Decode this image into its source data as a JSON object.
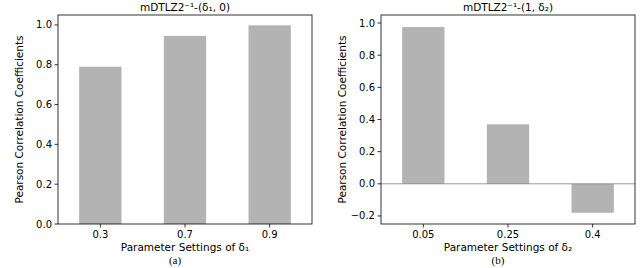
{
  "chart_data": [
    {
      "type": "bar",
      "title": "mDTLZ2⁻¹-(δ₁, 0)",
      "x_label": "Parameter Settings of δ₁",
      "y_label": "Pearson Correlation Coefficients",
      "caption": "(a)",
      "categories": [
        "0.3",
        "0.7",
        "0.9"
      ],
      "values": [
        0.79,
        0.945,
        0.998
      ],
      "color": "#b3b3b3",
      "ylim": [
        0,
        1.05
      ],
      "yticks": [
        {
          "value": 0,
          "label": "0.0"
        },
        {
          "value": 0.2,
          "label": "0.2"
        },
        {
          "value": 0.4,
          "label": "0.4"
        },
        {
          "value": 0.6,
          "label": "0.6"
        },
        {
          "value": 0.8,
          "label": "0.8"
        },
        {
          "value": 1,
          "label": "1.0"
        }
      ],
      "grid": false
    },
    {
      "type": "bar",
      "title": "mDTLZ2⁻¹-(1, δ₂)",
      "x_label": "Parameter Settings of δ₂",
      "y_label": "Pearson Correlation Coefficients",
      "caption": "(b)",
      "categories": [
        "0.05",
        "0.25",
        "0.4"
      ],
      "values": [
        0.975,
        0.37,
        -0.18
      ],
      "color": "#b3b3b3",
      "ylim": [
        -0.25,
        1.05
      ],
      "yticks": [
        {
          "value": -0.2,
          "label": "−0.2"
        },
        {
          "value": 0,
          "label": "0.0"
        },
        {
          "value": 0.2,
          "label": "0.2"
        },
        {
          "value": 0.4,
          "label": "0.4"
        },
        {
          "value": 0.6,
          "label": "0.6"
        },
        {
          "value": 0.8,
          "label": "0.8"
        },
        {
          "value": 1,
          "label": "1.0"
        }
      ],
      "grid": false
    }
  ]
}
